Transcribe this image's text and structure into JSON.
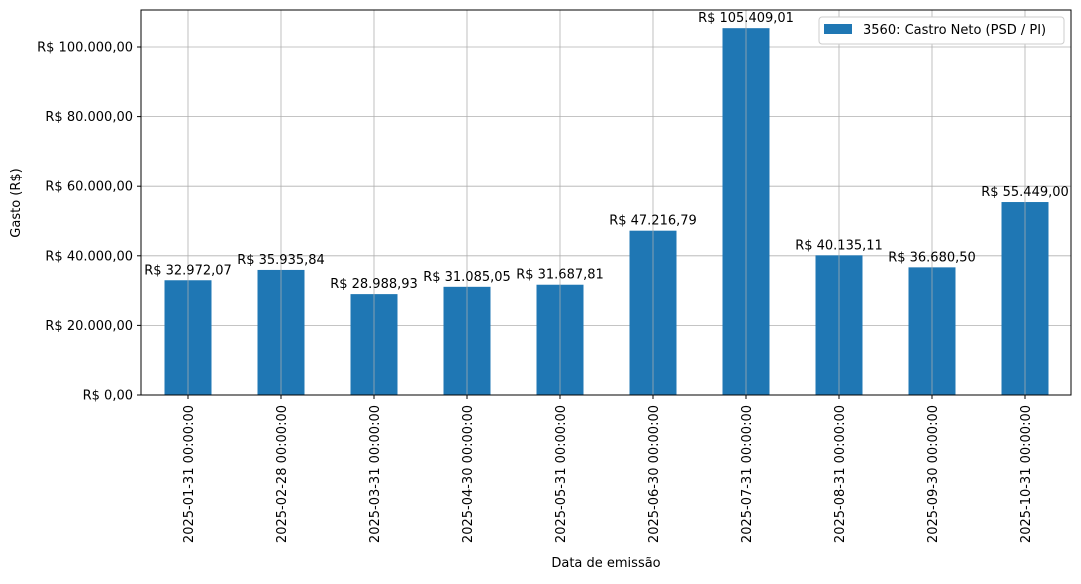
{
  "chart_data": {
    "type": "bar",
    "title": "",
    "xlabel": "Data de emissão",
    "ylabel": "Gasto (R$)",
    "ylim": [
      0,
      110000
    ],
    "grid": true,
    "legend_position": "upper right",
    "color": "#1f77b4",
    "categories": [
      "2025-01-31 00:00:00",
      "2025-02-28 00:00:00",
      "2025-03-31 00:00:00",
      "2025-04-30 00:00:00",
      "2025-05-31 00:00:00",
      "2025-06-30 00:00:00",
      "2025-07-31 00:00:00",
      "2025-08-31 00:00:00",
      "2025-09-30 00:00:00",
      "2025-10-31 00:00:00"
    ],
    "series": [
      {
        "name": "3560: Castro Neto (PSD / PI)",
        "values": [
          32972.07,
          35935.84,
          28988.93,
          31085.05,
          31687.81,
          47216.79,
          105409.01,
          40135.11,
          36680.5,
          55449.0
        ],
        "labels": [
          "R$ 32.972,07",
          "R$ 35.935,84",
          "R$ 28.988,93",
          "R$ 31.085,05",
          "R$ 31.687,81",
          "R$ 47.216,79",
          "R$ 105.409,01",
          "R$ 40.135,11",
          "R$ 36.680,50",
          "R$ 55.449,00"
        ]
      }
    ],
    "yticks": [
      {
        "value": 0,
        "label": "R$ 0,00"
      },
      {
        "value": 20000,
        "label": "R$ 20.000,00"
      },
      {
        "value": 40000,
        "label": "R$ 40.000,00"
      },
      {
        "value": 60000,
        "label": "R$ 60.000,00"
      },
      {
        "value": 80000,
        "label": "R$ 80.000,00"
      },
      {
        "value": 100000,
        "label": "R$ 100.000,00"
      }
    ]
  }
}
